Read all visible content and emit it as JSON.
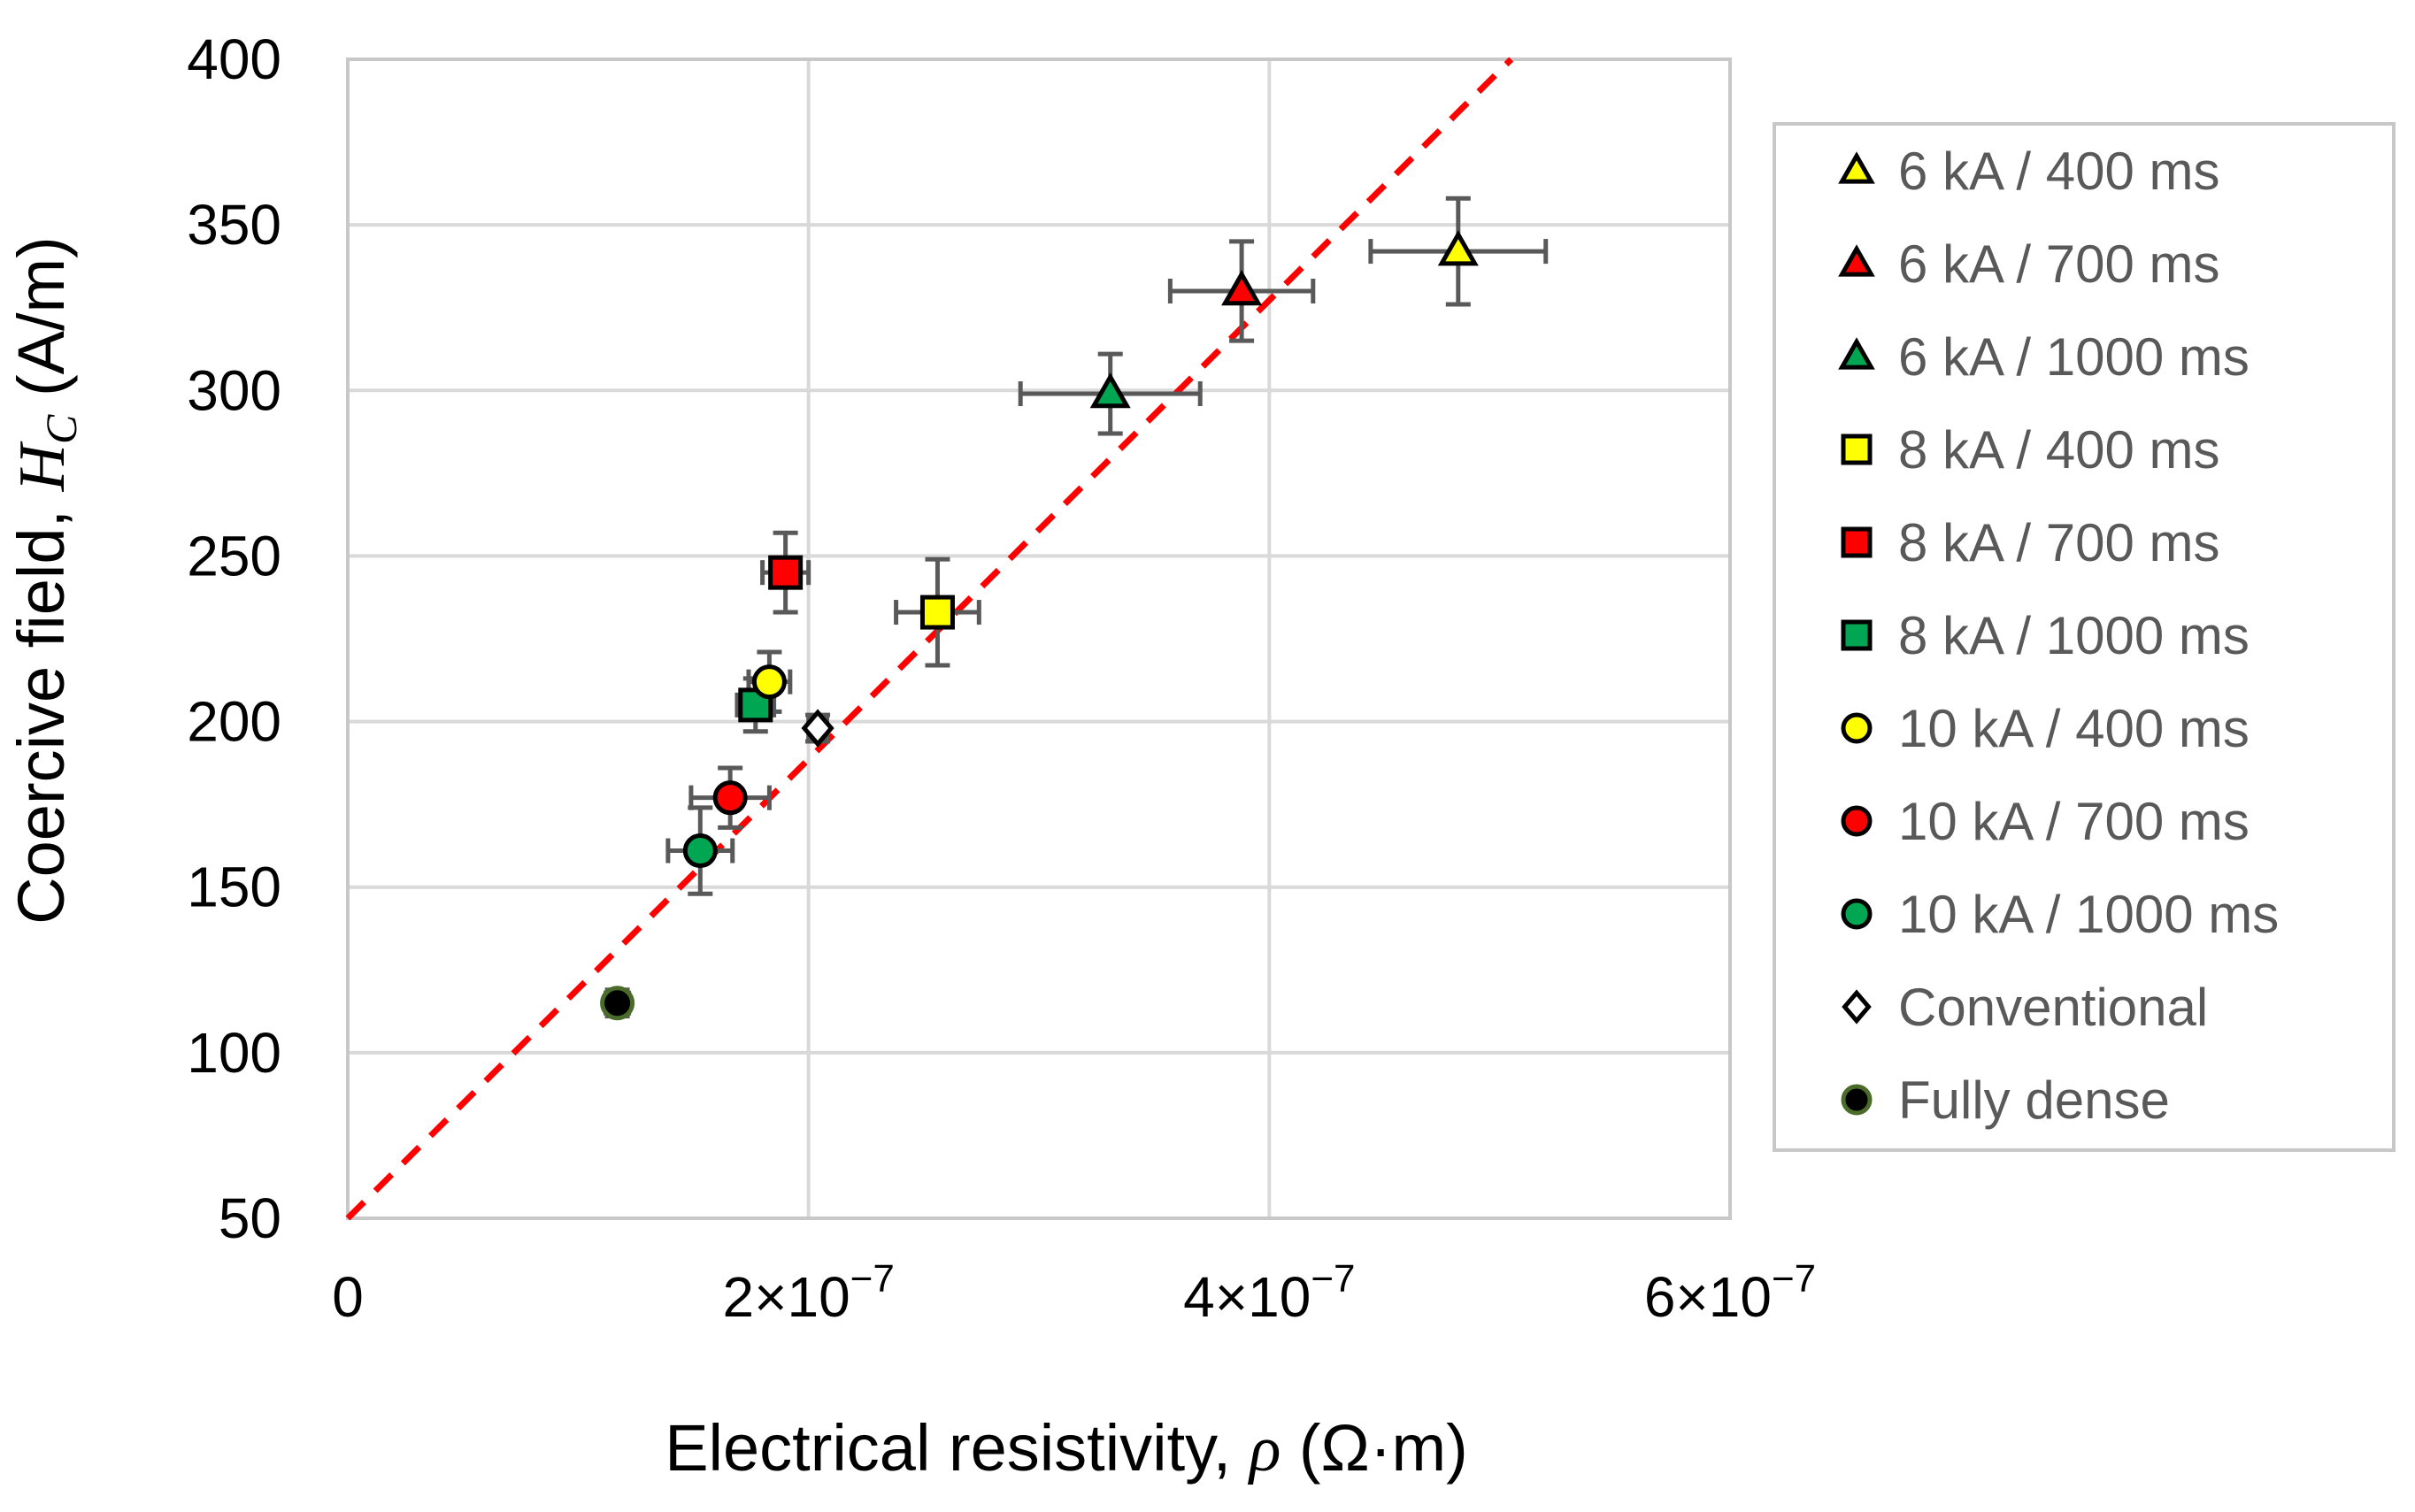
{
  "chart_data": {
    "type": "scatter",
    "title": "",
    "xlabel": {
      "prefix": "Electrical resistivity, ",
      "symbol": "ρ",
      "suffix": " (Ω·m)"
    },
    "ylabel": {
      "prefix": "Coercive field, ",
      "symbol": "H",
      "subscript": "C",
      "suffix": " (A/m)"
    },
    "xlim": [
      0,
      6e-07
    ],
    "ylim": [
      50,
      400
    ],
    "x_ticks": [
      {
        "value": 0,
        "label": "0",
        "mantissa": "",
        "exponent": ""
      },
      {
        "value": 2e-07,
        "label": "2×10−7",
        "mantissa": "2×10",
        "exponent": "−7"
      },
      {
        "value": 4e-07,
        "label": "4×10−7",
        "mantissa": "4×10",
        "exponent": "−7"
      },
      {
        "value": 6e-07,
        "label": "6×10−7",
        "mantissa": "6×10",
        "exponent": "−7"
      }
    ],
    "y_ticks": [
      50,
      100,
      150,
      200,
      250,
      300,
      350,
      400
    ],
    "grid": true,
    "legend_position": "right",
    "fit_line": {
      "style": "dashed",
      "color": "#ff0000",
      "x": [
        0,
        5.05e-07
      ],
      "y": [
        50,
        400
      ]
    },
    "series": [
      {
        "name": "6 kA / 400 ms",
        "marker": "triangle",
        "color": "#ffff00",
        "x": 4.82e-07,
        "y": 342,
        "xerr": 3.8e-08,
        "yerr": 16
      },
      {
        "name": "6 kA / 700 ms",
        "marker": "triangle",
        "color": "#ff0000",
        "x": 3.88e-07,
        "y": 330,
        "xerr": 3.1e-08,
        "yerr": 15
      },
      {
        "name": "6 kA / 1000 ms",
        "marker": "triangle",
        "color": "#00a651",
        "x": 3.31e-07,
        "y": 299,
        "xerr": 3.9e-08,
        "yerr": 12
      },
      {
        "name": "8 kA / 400 ms",
        "marker": "square",
        "color": "#ffff00",
        "x": 2.56e-07,
        "y": 233,
        "xerr": 1.8e-08,
        "yerr": 16
      },
      {
        "name": "8 kA / 700 ms",
        "marker": "square",
        "color": "#ff0000",
        "x": 1.9e-07,
        "y": 245,
        "xerr": 1e-08,
        "yerr": 12
      },
      {
        "name": "8 kA / 1000 ms",
        "marker": "square",
        "color": "#00a651",
        "x": 1.77e-07,
        "y": 205,
        "xerr": 8e-09,
        "yerr": 8
      },
      {
        "name": "10 kA / 400 ms",
        "marker": "circle",
        "color": "#ffff00",
        "x": 1.83e-07,
        "y": 212,
        "xerr": 9e-09,
        "yerr": 9
      },
      {
        "name": "10 kA / 700 ms",
        "marker": "circle",
        "color": "#ff0000",
        "x": 1.66e-07,
        "y": 177,
        "xerr": 1.7e-08,
        "yerr": 9
      },
      {
        "name": "10 kA / 1000 ms",
        "marker": "circle",
        "color": "#00a651",
        "x": 1.53e-07,
        "y": 161,
        "xerr": 1.4e-08,
        "yerr": 13
      },
      {
        "name": "Conventional",
        "marker": "diamond",
        "color": "#ffffff",
        "x": 2.04e-07,
        "y": 198,
        "xerr": 4e-09,
        "yerr": 4
      },
      {
        "name": "Fully dense",
        "marker": "circle",
        "color": "#000000",
        "edge_color": "#4a6b2a",
        "x": 1.17e-07,
        "y": 115,
        "xerr": 5e-09,
        "yerr": 4
      }
    ]
  }
}
